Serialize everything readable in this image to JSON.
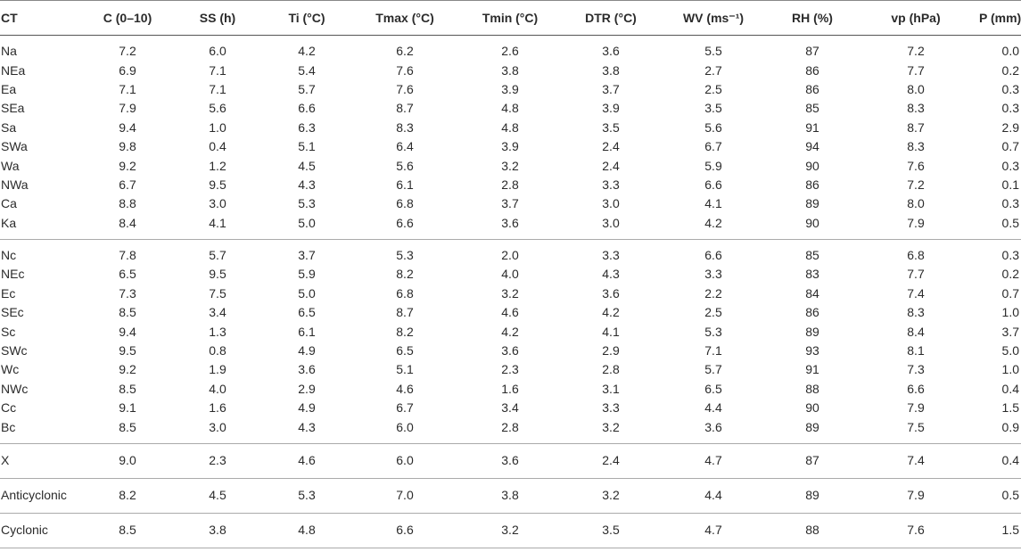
{
  "headers": [
    "CT",
    "C (0–10)",
    "SS (h)",
    "Ti (°C)",
    "Tmax (°C)",
    "Tmin (°C)",
    "DTR (°C)",
    "WV (ms⁻¹)",
    "RH (%)",
    "vp (hPa)",
    "P (mm)"
  ],
  "group_a": [
    [
      "Na",
      "7.2",
      "6.0",
      "4.2",
      "6.2",
      "2.6",
      "3.6",
      "5.5",
      "87",
      "7.2",
      "0.0"
    ],
    [
      "NEa",
      "6.9",
      "7.1",
      "5.4",
      "7.6",
      "3.8",
      "3.8",
      "2.7",
      "86",
      "7.7",
      "0.2"
    ],
    [
      "Ea",
      "7.1",
      "7.1",
      "5.7",
      "7.6",
      "3.9",
      "3.7",
      "2.5",
      "86",
      "8.0",
      "0.3"
    ],
    [
      "SEa",
      "7.9",
      "5.6",
      "6.6",
      "8.7",
      "4.8",
      "3.9",
      "3.5",
      "85",
      "8.3",
      "0.3"
    ],
    [
      "Sa",
      "9.4",
      "1.0",
      "6.3",
      "8.3",
      "4.8",
      "3.5",
      "5.6",
      "91",
      "8.7",
      "2.9"
    ],
    [
      "SWa",
      "9.8",
      "0.4",
      "5.1",
      "6.4",
      "3.9",
      "2.4",
      "6.7",
      "94",
      "8.3",
      "0.7"
    ],
    [
      "Wa",
      "9.2",
      "1.2",
      "4.5",
      "5.6",
      "3.2",
      "2.4",
      "5.9",
      "90",
      "7.6",
      "0.3"
    ],
    [
      "NWa",
      "6.7",
      "9.5",
      "4.3",
      "6.1",
      "2.8",
      "3.3",
      "6.6",
      "86",
      "7.2",
      "0.1"
    ],
    [
      "Ca",
      "8.8",
      "3.0",
      "5.3",
      "6.8",
      "3.7",
      "3.0",
      "4.1",
      "89",
      "8.0",
      "0.3"
    ],
    [
      "Ka",
      "8.4",
      "4.1",
      "5.0",
      "6.6",
      "3.6",
      "3.0",
      "4.2",
      "90",
      "7.9",
      "0.5"
    ]
  ],
  "group_c": [
    [
      "Nc",
      "7.8",
      "5.7",
      "3.7",
      "5.3",
      "2.0",
      "3.3",
      "6.6",
      "85",
      "6.8",
      "0.3"
    ],
    [
      "NEc",
      "6.5",
      "9.5",
      "5.9",
      "8.2",
      "4.0",
      "4.3",
      "3.3",
      "83",
      "7.7",
      "0.2"
    ],
    [
      "Ec",
      "7.3",
      "7.5",
      "5.0",
      "6.8",
      "3.2",
      "3.6",
      "2.2",
      "84",
      "7.4",
      "0.7"
    ],
    [
      "SEc",
      "8.5",
      "3.4",
      "6.5",
      "8.7",
      "4.6",
      "4.2",
      "2.5",
      "86",
      "8.3",
      "1.0"
    ],
    [
      "Sc",
      "9.4",
      "1.3",
      "6.1",
      "8.2",
      "4.2",
      "4.1",
      "5.3",
      "89",
      "8.4",
      "3.7"
    ],
    [
      "SWc",
      "9.5",
      "0.8",
      "4.9",
      "6.5",
      "3.6",
      "2.9",
      "7.1",
      "93",
      "8.1",
      "5.0"
    ],
    [
      "Wc",
      "9.2",
      "1.9",
      "3.6",
      "5.1",
      "2.3",
      "2.8",
      "5.7",
      "91",
      "7.3",
      "1.0"
    ],
    [
      "NWc",
      "8.5",
      "4.0",
      "2.9",
      "4.6",
      "1.6",
      "3.1",
      "6.5",
      "88",
      "6.6",
      "0.4"
    ],
    [
      "Cc",
      "9.1",
      "1.6",
      "4.9",
      "6.7",
      "3.4",
      "3.3",
      "4.4",
      "90",
      "7.9",
      "1.5"
    ],
    [
      "Bc",
      "8.5",
      "3.0",
      "4.3",
      "6.0",
      "2.8",
      "3.2",
      "3.6",
      "89",
      "7.5",
      "0.9"
    ]
  ],
  "row_x": [
    "X",
    "9.0",
    "2.3",
    "4.6",
    "6.0",
    "3.6",
    "2.4",
    "4.7",
    "87",
    "7.4",
    "0.4"
  ],
  "row_anticyclonic": [
    "Anticyclonic",
    "8.2",
    "4.5",
    "5.3",
    "7.0",
    "3.8",
    "3.2",
    "4.4",
    "89",
    "7.9",
    "0.5"
  ],
  "row_cyclonic": [
    "Cyclonic",
    "8.5",
    "3.8",
    "4.8",
    "6.6",
    "3.2",
    "3.5",
    "4.7",
    "88",
    "7.6",
    "1.5"
  ]
}
